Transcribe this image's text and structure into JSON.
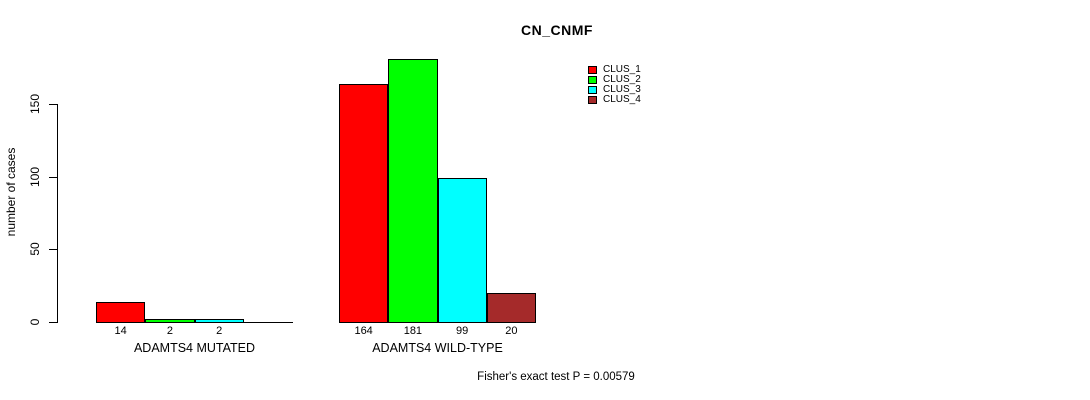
{
  "figure": {
    "title": "CN_CNMF",
    "ylabel": "number of cases",
    "annotation": "Fisher's exact test P = 0.00579",
    "background_color": "#FFFFFF",
    "axis_color": "#000000",
    "text_color": "#000000"
  },
  "chart_data": {
    "type": "bar",
    "title": "CN_CNMF",
    "xlabel": "",
    "ylabel": "number of cases",
    "categories": [
      "ADAMTS4 MUTATED",
      "ADAMTS4 WILD-TYPE"
    ],
    "series": [
      {
        "name": "CLUS_1",
        "color": "#FF0000",
        "values": [
          14,
          164
        ]
      },
      {
        "name": "CLUS_2",
        "color": "#00FF00",
        "values": [
          2,
          181
        ]
      },
      {
        "name": "CLUS_3",
        "color": "#00FFFF",
        "values": [
          2,
          99
        ]
      },
      {
        "name": "CLUS_4",
        "color": "#A52A2A",
        "values": [
          0,
          20
        ]
      }
    ],
    "value_labels": [
      [
        "14",
        "2",
        "2",
        ""
      ],
      [
        "164",
        "181",
        "99",
        "20"
      ]
    ],
    "yticks": [
      "0",
      "50",
      "100",
      "150"
    ],
    "ytick_values": [
      0,
      50,
      100,
      150
    ],
    "ylim": [
      0,
      185
    ],
    "grid": false,
    "bar_border_color": "#000000",
    "legend_position": "top-right",
    "legend_entries": [
      "CLUS_1",
      "CLUS_2",
      "CLUS_3",
      "CLUS_4"
    ],
    "annotation": "Fisher's exact test P = 0.00579"
  }
}
